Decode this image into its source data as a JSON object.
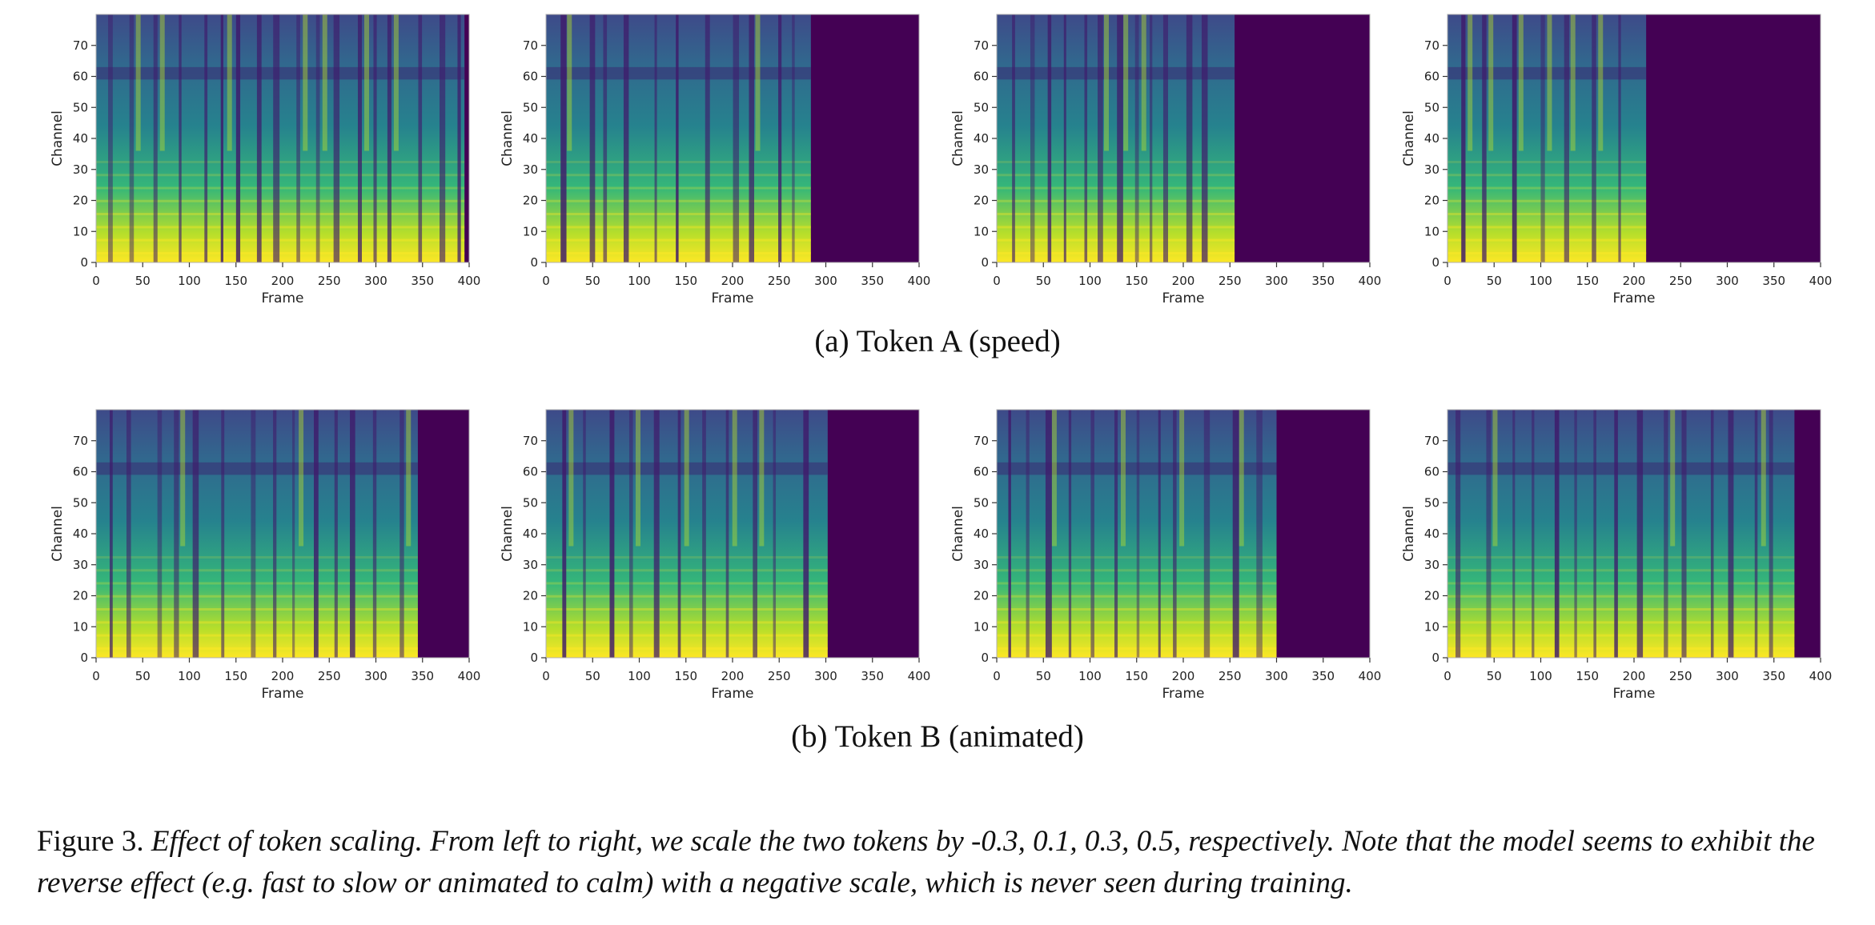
{
  "rows": [
    {
      "subcaption": "(a) Token A (speed)",
      "panels": [
        {
          "content_end_frame": 395
        },
        {
          "content_end_frame": 284
        },
        {
          "content_end_frame": 255
        },
        {
          "content_end_frame": 213
        }
      ]
    },
    {
      "subcaption": "(b) Token B (animated)",
      "panels": [
        {
          "content_end_frame": 345
        },
        {
          "content_end_frame": 302
        },
        {
          "content_end_frame": 300
        },
        {
          "content_end_frame": 372
        }
      ]
    }
  ],
  "axes": {
    "xlabel": "Frame",
    "ylabel": "Channel",
    "x_ticks": [
      0,
      50,
      100,
      150,
      200,
      250,
      300,
      350,
      400
    ],
    "y_ticks": [
      0,
      10,
      20,
      30,
      40,
      50,
      60,
      70
    ],
    "xlim": [
      0,
      400
    ],
    "ylim": [
      0,
      80
    ]
  },
  "colormap": {
    "name": "viridis",
    "background": "#440154"
  },
  "caption": {
    "label": "Figure 3.",
    "text": " Effect of token scaling. From left to right, we scale the two tokens by -0.3, 0.1, 0.3, 0.5, respectively. Note that the model seems to exhibit the reverse effect (e.g. fast to slow or animated to calm) with a negative scale, which is never seen during training."
  },
  "chart_data": [
    {
      "type": "heatmap",
      "row": "a",
      "panel": 1,
      "xlabel": "Frame",
      "ylabel": "Channel",
      "xlim": [
        0,
        400
      ],
      "ylim": [
        0,
        80
      ],
      "content_end_frame": 395
    },
    {
      "type": "heatmap",
      "row": "a",
      "panel": 2,
      "xlabel": "Frame",
      "ylabel": "Channel",
      "xlim": [
        0,
        400
      ],
      "ylim": [
        0,
        80
      ],
      "content_end_frame": 284
    },
    {
      "type": "heatmap",
      "row": "a",
      "panel": 3,
      "xlabel": "Frame",
      "ylabel": "Channel",
      "xlim": [
        0,
        400
      ],
      "ylim": [
        0,
        80
      ],
      "content_end_frame": 255
    },
    {
      "type": "heatmap",
      "row": "a",
      "panel": 4,
      "xlabel": "Frame",
      "ylabel": "Channel",
      "xlim": [
        0,
        400
      ],
      "ylim": [
        0,
        80
      ],
      "content_end_frame": 213
    },
    {
      "type": "heatmap",
      "row": "b",
      "panel": 1,
      "xlabel": "Frame",
      "ylabel": "Channel",
      "xlim": [
        0,
        400
      ],
      "ylim": [
        0,
        80
      ],
      "content_end_frame": 345
    },
    {
      "type": "heatmap",
      "row": "b",
      "panel": 2,
      "xlabel": "Frame",
      "ylabel": "Channel",
      "xlim": [
        0,
        400
      ],
      "ylim": [
        0,
        80
      ],
      "content_end_frame": 302
    },
    {
      "type": "heatmap",
      "row": "b",
      "panel": 3,
      "xlabel": "Frame",
      "ylabel": "Channel",
      "xlim": [
        0,
        400
      ],
      "ylim": [
        0,
        80
      ],
      "content_end_frame": 300
    },
    {
      "type": "heatmap",
      "row": "b",
      "panel": 4,
      "xlabel": "Frame",
      "ylabel": "Channel",
      "xlim": [
        0,
        400
      ],
      "ylim": [
        0,
        80
      ],
      "content_end_frame": 372
    }
  ]
}
